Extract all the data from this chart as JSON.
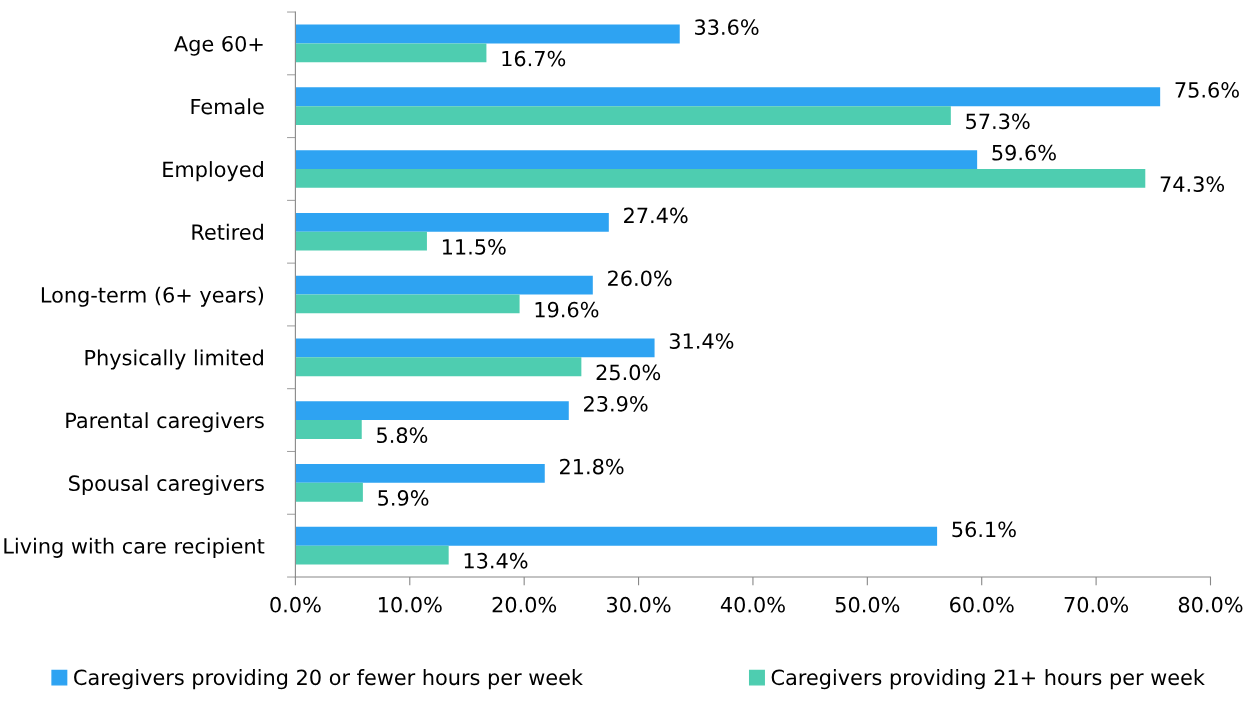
{
  "chart_data": {
    "type": "bar",
    "orientation": "horizontal",
    "categories": [
      "Age 60+",
      "Female",
      "Employed",
      "Retired",
      "Long-term (6+ years)",
      "Physically limited",
      "Parental caregivers",
      "Spousal caregivers",
      "Living with care recipient"
    ],
    "series": [
      {
        "name": "Caregivers providing 20 or fewer hours per week",
        "color": "#2ea3f2",
        "values": [
          33.6,
          75.6,
          59.6,
          27.4,
          26.0,
          31.4,
          23.9,
          21.8,
          56.1
        ],
        "value_labels": [
          "33.6%",
          "75.6%",
          "59.6%",
          "27.4%",
          "26.0%",
          "31.4%",
          "23.9%",
          "21.8%",
          "56.1%"
        ]
      },
      {
        "name": "Caregivers providing 21+ hours per week",
        "color": "#4ecdb0",
        "values": [
          16.7,
          57.3,
          74.3,
          11.5,
          19.6,
          25.0,
          5.8,
          5.9,
          13.4
        ],
        "value_labels": [
          "16.7%",
          "57.3%",
          "74.3%",
          "11.5%",
          "19.6%",
          "25.0%",
          "5.8%",
          "5.9%",
          "13.4%"
        ]
      }
    ],
    "xlim": [
      0,
      80
    ],
    "xticks": [
      {
        "value": 0,
        "label": "0.0%"
      },
      {
        "value": 10,
        "label": "10.0%"
      },
      {
        "value": 20,
        "label": "20.0%"
      },
      {
        "value": 30,
        "label": "30.0%"
      },
      {
        "value": 40,
        "label": "40.0%"
      },
      {
        "value": 50,
        "label": "50.0%"
      },
      {
        "value": 60,
        "label": "60.0%"
      },
      {
        "value": 70,
        "label": "70.0%"
      },
      {
        "value": 80,
        "label": "80.0%"
      }
    ],
    "grid": false,
    "legend": "bottom"
  }
}
